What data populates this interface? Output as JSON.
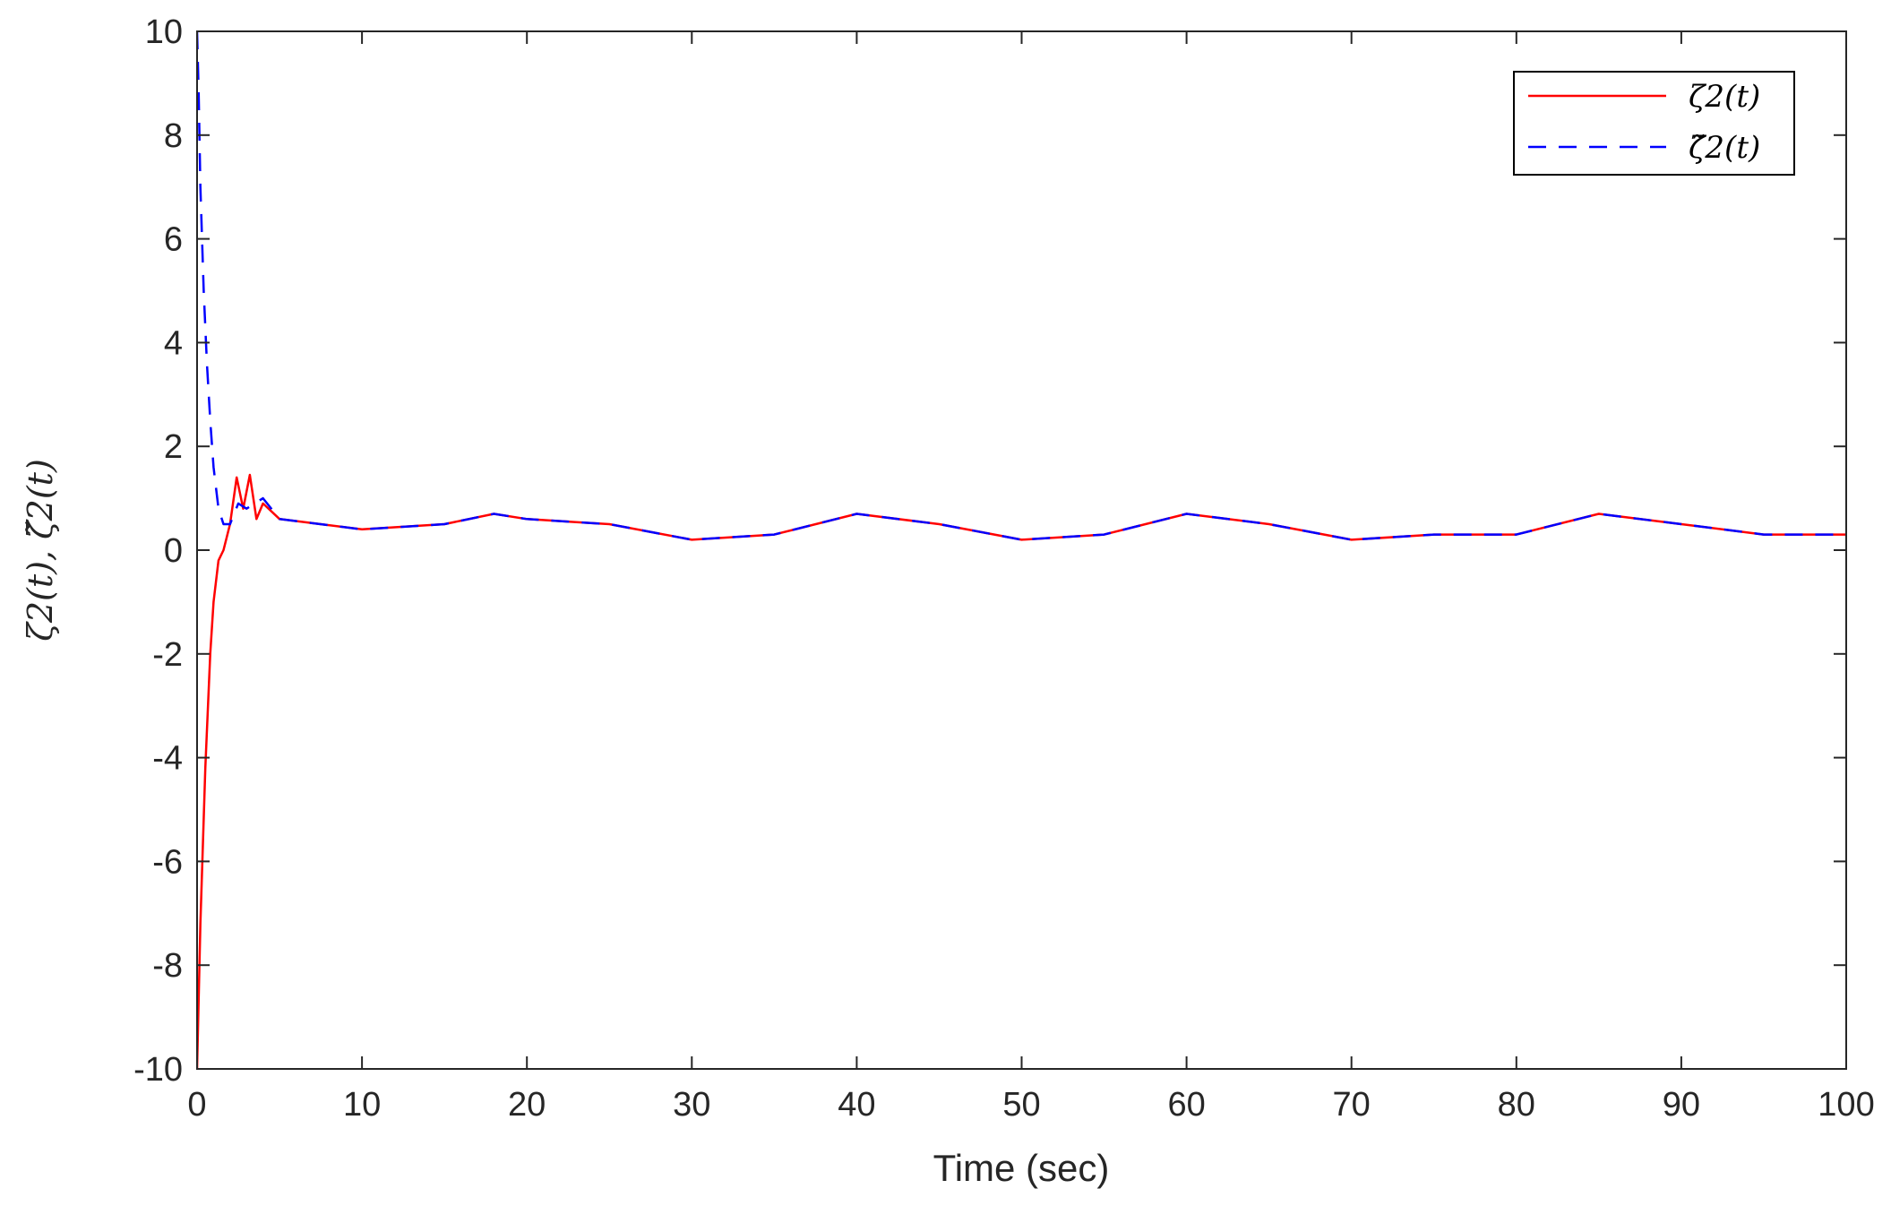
{
  "chart_data": {
    "type": "line",
    "xlabel": "Time (sec)",
    "ylabel": "ζ2(t), ζ̃2(t)",
    "xlim": [
      0,
      100
    ],
    "ylim": [
      -10,
      10
    ],
    "x_ticks": [
      0,
      10,
      20,
      30,
      40,
      50,
      60,
      70,
      80,
      90,
      100
    ],
    "y_ticks": [
      -10,
      -8,
      -6,
      -4,
      -2,
      0,
      2,
      4,
      6,
      8,
      10
    ],
    "x_tick_labels": [
      "0",
      "10",
      "20",
      "30",
      "40",
      "50",
      "60",
      "70",
      "80",
      "90",
      "100"
    ],
    "y_tick_labels": [
      "-10",
      "-8",
      "-6",
      "-4",
      "-2",
      "0",
      "2",
      "4",
      "6",
      "8",
      "10"
    ],
    "grid": false,
    "legend_position": "top-right",
    "legend": [
      "ζ2(t)",
      "ζ̃2(t)"
    ],
    "series": [
      {
        "name": "ζ2(t)",
        "color": "#ff0000",
        "line_style": "solid",
        "x": [
          0,
          0.2,
          0.5,
          0.8,
          1.0,
          1.3,
          1.6,
          2.0,
          2.4,
          2.8,
          3.2,
          3.6,
          4.0,
          5,
          10,
          15,
          18,
          20,
          25,
          30,
          35,
          40,
          45,
          50,
          55,
          60,
          65,
          70,
          75,
          80,
          85,
          90,
          95,
          100
        ],
        "values": [
          -10,
          -7.2,
          -4.2,
          -2.0,
          -1.0,
          -0.2,
          0.0,
          0.5,
          1.4,
          0.8,
          1.45,
          0.6,
          0.9,
          0.6,
          0.4,
          0.5,
          0.7,
          0.6,
          0.5,
          0.2,
          0.3,
          0.7,
          0.5,
          0.2,
          0.3,
          0.7,
          0.5,
          0.2,
          0.3,
          0.3,
          0.7,
          0.5,
          0.3,
          0.3
        ]
      },
      {
        "name": "ζ̃2(t)",
        "color": "#0000ff",
        "line_style": "dashed",
        "x": [
          0,
          0.1,
          0.2,
          0.4,
          0.6,
          0.8,
          1.0,
          1.3,
          1.6,
          2.0,
          2.5,
          3.0,
          4.0,
          5,
          10,
          15,
          18,
          20,
          25,
          30,
          35,
          40,
          45,
          50,
          55,
          60,
          65,
          70,
          75,
          80,
          85,
          90,
          95,
          100
        ],
        "values": [
          10,
          8.8,
          7.0,
          5.0,
          3.6,
          2.5,
          1.6,
          0.8,
          0.5,
          0.5,
          0.9,
          0.8,
          1.0,
          0.6,
          0.4,
          0.5,
          0.7,
          0.6,
          0.5,
          0.2,
          0.3,
          0.7,
          0.5,
          0.2,
          0.3,
          0.7,
          0.5,
          0.2,
          0.3,
          0.3,
          0.7,
          0.5,
          0.3,
          0.3
        ]
      }
    ]
  }
}
